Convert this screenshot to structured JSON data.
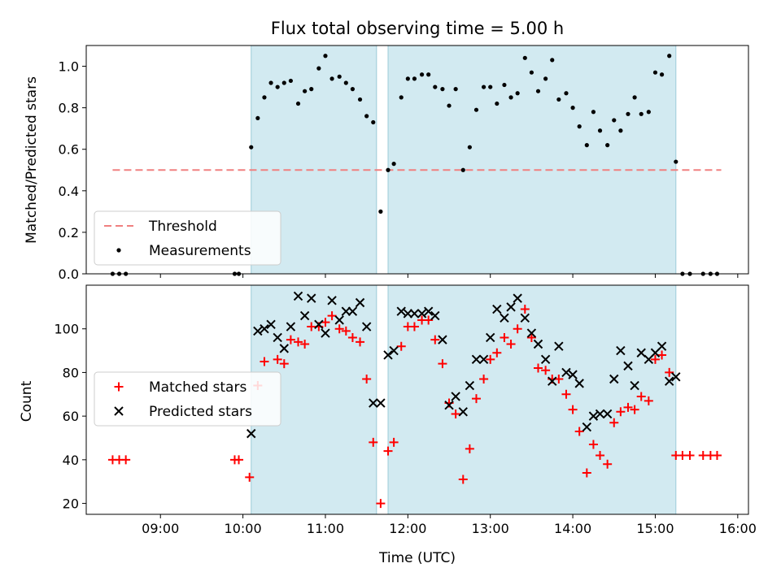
{
  "chart_data": {
    "type": "scatter",
    "title": "Flux total observing time = 5.00 h",
    "xlabel": "Time (UTC)",
    "x_unit": "hours UTC",
    "xlim": [
      8.1,
      16.13
    ],
    "x_ticks": [
      9,
      10,
      11,
      12,
      13,
      14,
      15,
      16
    ],
    "x_tick_labels": [
      "09:00",
      "10:00",
      "11:00",
      "12:00",
      "13:00",
      "14:00",
      "15:00",
      "16:00"
    ],
    "observing_windows": [
      [
        10.1,
        11.62
      ],
      [
        11.76,
        15.25
      ]
    ],
    "window_color": "#add8e6",
    "panels": [
      {
        "ylabel": "Matched/Predicted stars",
        "ylim": [
          0,
          1.1
        ],
        "y_ticks": [
          0.0,
          0.2,
          0.4,
          0.6,
          0.8,
          1.0
        ],
        "y_tick_labels": [
          "0.0",
          "0.2",
          "0.4",
          "0.6",
          "0.8",
          "1.0"
        ],
        "legend_position": "lower-left",
        "series": [
          {
            "name": "Threshold",
            "kind": "line",
            "style": "dashed",
            "color": "#f08080",
            "points": [
              [
                8.42,
                0.5
              ],
              [
                15.8,
                0.5
              ]
            ]
          },
          {
            "name": "Measurements",
            "kind": "dot",
            "color": "#000000",
            "points": [
              [
                8.42,
                0
              ],
              [
                8.5,
                0
              ],
              [
                8.58,
                0
              ],
              [
                9.9,
                0
              ],
              [
                9.95,
                0
              ],
              [
                10.1,
                0.61
              ],
              [
                10.18,
                0.75
              ],
              [
                10.26,
                0.85
              ],
              [
                10.34,
                0.92
              ],
              [
                10.42,
                0.9
              ],
              [
                10.5,
                0.92
              ],
              [
                10.58,
                0.93
              ],
              [
                10.67,
                0.82
              ],
              [
                10.75,
                0.88
              ],
              [
                10.83,
                0.89
              ],
              [
                10.92,
                0.99
              ],
              [
                11.0,
                1.05
              ],
              [
                11.08,
                0.94
              ],
              [
                11.17,
                0.95
              ],
              [
                11.25,
                0.92
              ],
              [
                11.33,
                0.89
              ],
              [
                11.42,
                0.84
              ],
              [
                11.5,
                0.76
              ],
              [
                11.58,
                0.73
              ],
              [
                11.67,
                0.3
              ],
              [
                11.76,
                0.5
              ],
              [
                11.83,
                0.53
              ],
              [
                11.92,
                0.85
              ],
              [
                12.0,
                0.94
              ],
              [
                12.08,
                0.94
              ],
              [
                12.17,
                0.96
              ],
              [
                12.25,
                0.96
              ],
              [
                12.33,
                0.9
              ],
              [
                12.42,
                0.89
              ],
              [
                12.5,
                0.81
              ],
              [
                12.58,
                0.89
              ],
              [
                12.67,
                0.5
              ],
              [
                12.75,
                0.61
              ],
              [
                12.83,
                0.79
              ],
              [
                12.92,
                0.9
              ],
              [
                13.0,
                0.9
              ],
              [
                13.08,
                0.82
              ],
              [
                13.17,
                0.91
              ],
              [
                13.25,
                0.85
              ],
              [
                13.33,
                0.87
              ],
              [
                13.42,
                1.04
              ],
              [
                13.5,
                0.97
              ],
              [
                13.58,
                0.88
              ],
              [
                13.67,
                0.94
              ],
              [
                13.75,
                1.03
              ],
              [
                13.83,
                0.84
              ],
              [
                13.92,
                0.87
              ],
              [
                14.0,
                0.8
              ],
              [
                14.08,
                0.71
              ],
              [
                14.17,
                0.62
              ],
              [
                14.25,
                0.78
              ],
              [
                14.33,
                0.69
              ],
              [
                14.42,
                0.62
              ],
              [
                14.5,
                0.74
              ],
              [
                14.58,
                0.69
              ],
              [
                14.67,
                0.77
              ],
              [
                14.75,
                0.85
              ],
              [
                14.83,
                0.77
              ],
              [
                14.92,
                0.78
              ],
              [
                15.0,
                0.97
              ],
              [
                15.08,
                0.96
              ],
              [
                15.17,
                1.05
              ],
              [
                15.25,
                0.54
              ],
              [
                15.33,
                0
              ],
              [
                15.42,
                0
              ],
              [
                15.58,
                0
              ],
              [
                15.67,
                0
              ],
              [
                15.75,
                0
              ]
            ]
          }
        ]
      },
      {
        "ylabel": "Count",
        "ylim": [
          15,
          120
        ],
        "y_ticks": [
          20,
          40,
          60,
          80,
          100
        ],
        "y_tick_labels": [
          "20",
          "40",
          "60",
          "80",
          "100"
        ],
        "legend_position": "center-left",
        "series": [
          {
            "name": "Matched stars",
            "kind": "plus",
            "color": "#ff0000",
            "points": [
              [
                8.42,
                40
              ],
              [
                8.5,
                40
              ],
              [
                8.58,
                40
              ],
              [
                9.9,
                40
              ],
              [
                9.95,
                40
              ],
              [
                10.08,
                32
              ],
              [
                10.18,
                74
              ],
              [
                10.26,
                85
              ],
              [
                10.42,
                86
              ],
              [
                10.5,
                84
              ],
              [
                10.58,
                95
              ],
              [
                10.67,
                94
              ],
              [
                10.75,
                93
              ],
              [
                10.83,
                101
              ],
              [
                10.92,
                101
              ],
              [
                11.0,
                103
              ],
              [
                11.08,
                106
              ],
              [
                11.17,
                100
              ],
              [
                11.25,
                99
              ],
              [
                11.33,
                96
              ],
              [
                11.42,
                94
              ],
              [
                11.5,
                77
              ],
              [
                11.58,
                48
              ],
              [
                11.67,
                20
              ],
              [
                11.76,
                44
              ],
              [
                11.83,
                48
              ],
              [
                11.92,
                92
              ],
              [
                12.0,
                101
              ],
              [
                12.08,
                101
              ],
              [
                12.17,
                104
              ],
              [
                12.25,
                104
              ],
              [
                12.33,
                95
              ],
              [
                12.42,
                84
              ],
              [
                12.5,
                66
              ],
              [
                12.58,
                61
              ],
              [
                12.67,
                31
              ],
              [
                12.75,
                45
              ],
              [
                12.83,
                68
              ],
              [
                12.92,
                77
              ],
              [
                13.0,
                86
              ],
              [
                13.08,
                89
              ],
              [
                13.17,
                96
              ],
              [
                13.25,
                93
              ],
              [
                13.33,
                100
              ],
              [
                13.42,
                109
              ],
              [
                13.5,
                96
              ],
              [
                13.58,
                82
              ],
              [
                13.67,
                81
              ],
              [
                13.75,
                77
              ],
              [
                13.83,
                77
              ],
              [
                13.92,
                70
              ],
              [
                14.0,
                63
              ],
              [
                14.08,
                53
              ],
              [
                14.17,
                34
              ],
              [
                14.25,
                47
              ],
              [
                14.33,
                42
              ],
              [
                14.42,
                38
              ],
              [
                14.5,
                57
              ],
              [
                14.58,
                62
              ],
              [
                14.67,
                64
              ],
              [
                14.75,
                63
              ],
              [
                14.83,
                69
              ],
              [
                14.92,
                67
              ],
              [
                15.0,
                86
              ],
              [
                15.08,
                88
              ],
              [
                15.17,
                80
              ],
              [
                15.25,
                42
              ],
              [
                15.33,
                42
              ],
              [
                15.42,
                42
              ],
              [
                15.58,
                42
              ],
              [
                15.67,
                42
              ],
              [
                15.75,
                42
              ]
            ]
          },
          {
            "name": "Predicted stars",
            "kind": "cross",
            "color": "#000000",
            "points": [
              [
                10.1,
                52
              ],
              [
                10.18,
                99
              ],
              [
                10.26,
                100
              ],
              [
                10.34,
                102
              ],
              [
                10.42,
                96
              ],
              [
                10.5,
                91
              ],
              [
                10.58,
                101
              ],
              [
                10.67,
                115
              ],
              [
                10.75,
                106
              ],
              [
                10.83,
                114
              ],
              [
                10.92,
                102
              ],
              [
                11.0,
                98
              ],
              [
                11.08,
                113
              ],
              [
                11.17,
                104
              ],
              [
                11.25,
                108
              ],
              [
                11.33,
                108
              ],
              [
                11.42,
                112
              ],
              [
                11.5,
                101
              ],
              [
                11.58,
                66
              ],
              [
                11.67,
                66
              ],
              [
                11.76,
                88
              ],
              [
                11.83,
                90
              ],
              [
                11.92,
                108
              ],
              [
                12.0,
                107
              ],
              [
                12.08,
                107
              ],
              [
                12.17,
                107
              ],
              [
                12.25,
                108
              ],
              [
                12.33,
                106
              ],
              [
                12.42,
                95
              ],
              [
                12.5,
                65
              ],
              [
                12.58,
                69
              ],
              [
                12.67,
                62
              ],
              [
                12.75,
                74
              ],
              [
                12.83,
                86
              ],
              [
                12.92,
                86
              ],
              [
                13.0,
                96
              ],
              [
                13.08,
                109
              ],
              [
                13.17,
                105
              ],
              [
                13.25,
                110
              ],
              [
                13.33,
                114
              ],
              [
                13.42,
                105
              ],
              [
                13.5,
                98
              ],
              [
                13.58,
                93
              ],
              [
                13.67,
                86
              ],
              [
                13.75,
                76
              ],
              [
                13.83,
                92
              ],
              [
                13.92,
                80
              ],
              [
                14.0,
                79
              ],
              [
                14.08,
                75
              ],
              [
                14.17,
                55
              ],
              [
                14.25,
                60
              ],
              [
                14.33,
                61
              ],
              [
                14.42,
                61
              ],
              [
                14.5,
                77
              ],
              [
                14.58,
                90
              ],
              [
                14.67,
                83
              ],
              [
                14.75,
                74
              ],
              [
                14.83,
                89
              ],
              [
                14.92,
                86
              ],
              [
                15.0,
                89
              ],
              [
                15.08,
                92
              ],
              [
                15.17,
                76
              ],
              [
                15.25,
                78
              ]
            ]
          }
        ]
      }
    ]
  }
}
